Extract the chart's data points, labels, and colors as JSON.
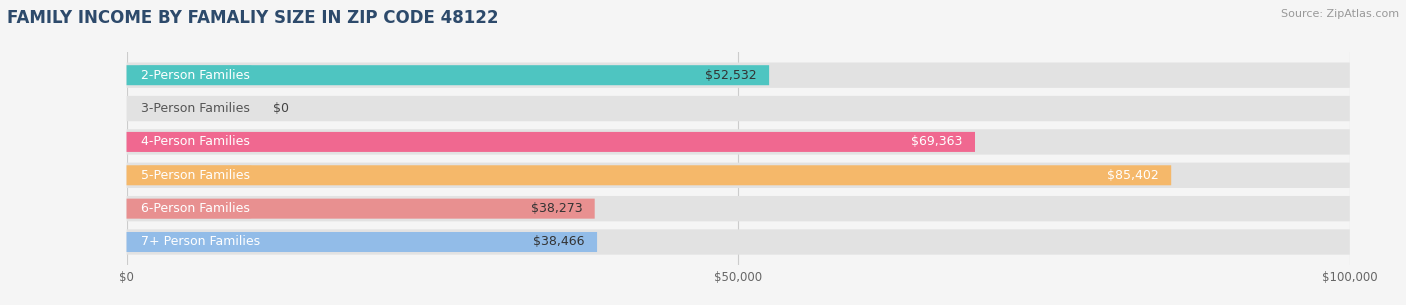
{
  "title": "FAMILY INCOME BY FAMALIY SIZE IN ZIP CODE 48122",
  "source": "Source: ZipAtlas.com",
  "categories": [
    "2-Person Families",
    "3-Person Families",
    "4-Person Families",
    "5-Person Families",
    "6-Person Families",
    "7+ Person Families"
  ],
  "values": [
    52532,
    0,
    69363,
    85402,
    38273,
    38466
  ],
  "bar_colors": [
    "#4ec5c1",
    "#b8b8e8",
    "#f06890",
    "#f5b86a",
    "#e89090",
    "#92bce8"
  ],
  "value_labels": [
    "$52,532",
    "$0",
    "$69,363",
    "$85,402",
    "$38,273",
    "$38,466"
  ],
  "xlim": [
    0,
    100000
  ],
  "xticks": [
    0,
    50000,
    100000
  ],
  "xtick_labels": [
    "$0",
    "$50,000",
    "$100,000"
  ],
  "background_color": "#f5f5f5",
  "bar_background_color": "#e2e2e2",
  "title_color": "#2d4a6b",
  "source_color": "#999999",
  "label_fontsize": 9,
  "value_fontsize": 9,
  "title_fontsize": 12
}
